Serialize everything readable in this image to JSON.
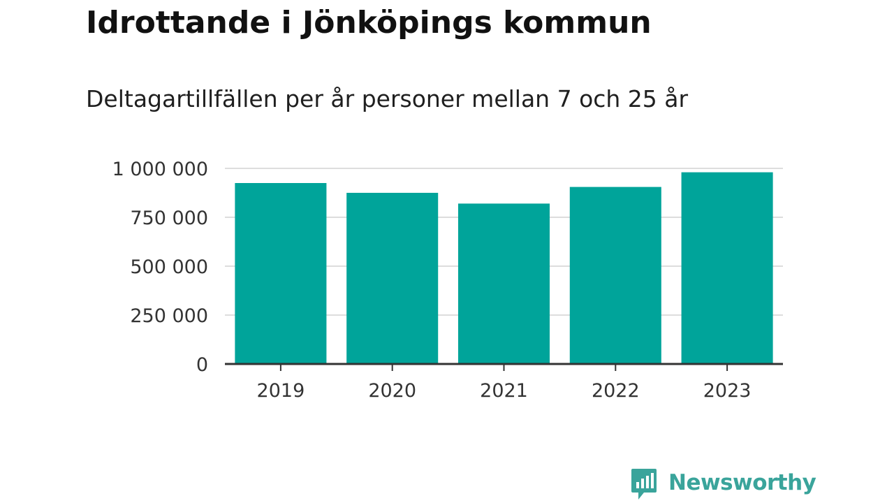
{
  "header": {
    "title": "Idrottande i Jönköpings kommun",
    "subtitle": "Deltagartillfällen per år personer mellan 7 och 25 år"
  },
  "brand": {
    "name": "Newsworthy",
    "color": "#3aa49b"
  },
  "chart_data": {
    "type": "bar",
    "title": "Idrottande i Jönköpings kommun",
    "subtitle": "Deltagartillfällen per år personer mellan 7 och 25 år",
    "categories": [
      "2019",
      "2020",
      "2021",
      "2022",
      "2023"
    ],
    "values": [
      925000,
      875000,
      820000,
      905000,
      980000
    ],
    "ylim": [
      0,
      1000000
    ],
    "yticks": [
      0,
      250000,
      500000,
      750000,
      1000000
    ],
    "ytick_labels": [
      "0",
      "250 000",
      "500 000",
      "750 000",
      "1 000 000"
    ],
    "xlabel": "",
    "ylabel": "",
    "grid": true,
    "bar_color": "#00a49a",
    "gridline_color": "#dddddd",
    "axis_color": "#333333"
  }
}
